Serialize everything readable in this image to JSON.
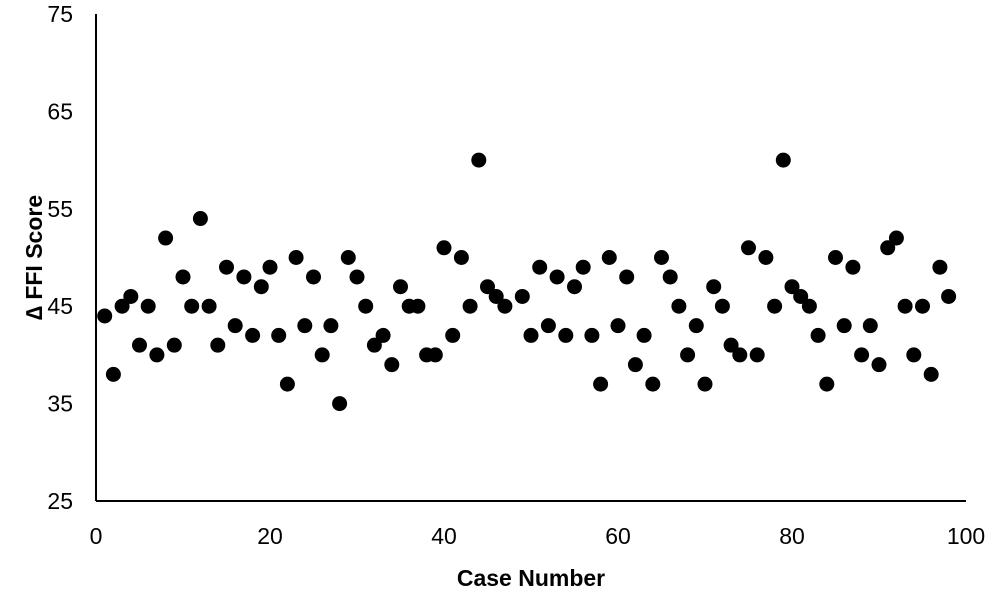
{
  "chart_data": {
    "type": "scatter",
    "title": "",
    "xlabel": "Case Number",
    "ylabel": "∆ FFI Score",
    "xlim": [
      0,
      100
    ],
    "ylim": [
      25,
      75
    ],
    "x_ticks": [
      0,
      20,
      40,
      60,
      80,
      100
    ],
    "y_ticks": [
      25,
      35,
      45,
      55,
      65,
      75
    ],
    "grid": false,
    "legend": "none",
    "marker_color": "#000000",
    "points": [
      {
        "x": 1,
        "y": 44
      },
      {
        "x": 2,
        "y": 38
      },
      {
        "x": 3,
        "y": 45
      },
      {
        "x": 4,
        "y": 46
      },
      {
        "x": 5,
        "y": 41
      },
      {
        "x": 6,
        "y": 45
      },
      {
        "x": 7,
        "y": 40
      },
      {
        "x": 8,
        "y": 52
      },
      {
        "x": 9,
        "y": 41
      },
      {
        "x": 10,
        "y": 48
      },
      {
        "x": 11,
        "y": 45
      },
      {
        "x": 12,
        "y": 54
      },
      {
        "x": 13,
        "y": 45
      },
      {
        "x": 14,
        "y": 41
      },
      {
        "x": 15,
        "y": 49
      },
      {
        "x": 16,
        "y": 43
      },
      {
        "x": 17,
        "y": 48
      },
      {
        "x": 18,
        "y": 42
      },
      {
        "x": 19,
        "y": 47
      },
      {
        "x": 20,
        "y": 49
      },
      {
        "x": 21,
        "y": 42
      },
      {
        "x": 22,
        "y": 37
      },
      {
        "x": 23,
        "y": 50
      },
      {
        "x": 24,
        "y": 43
      },
      {
        "x": 25,
        "y": 48
      },
      {
        "x": 26,
        "y": 40
      },
      {
        "x": 27,
        "y": 43
      },
      {
        "x": 28,
        "y": 35
      },
      {
        "x": 29,
        "y": 50
      },
      {
        "x": 30,
        "y": 48
      },
      {
        "x": 31,
        "y": 45
      },
      {
        "x": 32,
        "y": 41
      },
      {
        "x": 33,
        "y": 42
      },
      {
        "x": 34,
        "y": 39
      },
      {
        "x": 35,
        "y": 47
      },
      {
        "x": 36,
        "y": 45
      },
      {
        "x": 37,
        "y": 45
      },
      {
        "x": 38,
        "y": 40
      },
      {
        "x": 39,
        "y": 40
      },
      {
        "x": 40,
        "y": 51
      },
      {
        "x": 41,
        "y": 42
      },
      {
        "x": 42,
        "y": 50
      },
      {
        "x": 43,
        "y": 45
      },
      {
        "x": 44,
        "y": 60
      },
      {
        "x": 45,
        "y": 47
      },
      {
        "x": 46,
        "y": 46
      },
      {
        "x": 47,
        "y": 45
      },
      {
        "x": 49,
        "y": 46
      },
      {
        "x": 50,
        "y": 42
      },
      {
        "x": 51,
        "y": 49
      },
      {
        "x": 52,
        "y": 43
      },
      {
        "x": 53,
        "y": 48
      },
      {
        "x": 54,
        "y": 42
      },
      {
        "x": 55,
        "y": 47
      },
      {
        "x": 56,
        "y": 49
      },
      {
        "x": 57,
        "y": 42
      },
      {
        "x": 58,
        "y": 37
      },
      {
        "x": 59,
        "y": 50
      },
      {
        "x": 60,
        "y": 43
      },
      {
        "x": 61,
        "y": 48
      },
      {
        "x": 62,
        "y": 39
      },
      {
        "x": 63,
        "y": 42
      },
      {
        "x": 64,
        "y": 37
      },
      {
        "x": 65,
        "y": 50
      },
      {
        "x": 66,
        "y": 48
      },
      {
        "x": 67,
        "y": 45
      },
      {
        "x": 68,
        "y": 40
      },
      {
        "x": 69,
        "y": 43
      },
      {
        "x": 70,
        "y": 37
      },
      {
        "x": 71,
        "y": 47
      },
      {
        "x": 72,
        "y": 45
      },
      {
        "x": 73,
        "y": 41
      },
      {
        "x": 74,
        "y": 40
      },
      {
        "x": 75,
        "y": 51
      },
      {
        "x": 76,
        "y": 40
      },
      {
        "x": 77,
        "y": 50
      },
      {
        "x": 78,
        "y": 45
      },
      {
        "x": 79,
        "y": 60
      },
      {
        "x": 80,
        "y": 47
      },
      {
        "x": 81,
        "y": 46
      },
      {
        "x": 82,
        "y": 45
      },
      {
        "x": 83,
        "y": 42
      },
      {
        "x": 84,
        "y": 37
      },
      {
        "x": 85,
        "y": 50
      },
      {
        "x": 86,
        "y": 43
      },
      {
        "x": 87,
        "y": 49
      },
      {
        "x": 88,
        "y": 40
      },
      {
        "x": 89,
        "y": 43
      },
      {
        "x": 90,
        "y": 39
      },
      {
        "x": 91,
        "y": 51
      },
      {
        "x": 92,
        "y": 52
      },
      {
        "x": 93,
        "y": 45
      },
      {
        "x": 94,
        "y": 40
      },
      {
        "x": 95,
        "y": 45
      },
      {
        "x": 96,
        "y": 38
      },
      {
        "x": 97,
        "y": 49
      },
      {
        "x": 98,
        "y": 46
      }
    ]
  }
}
